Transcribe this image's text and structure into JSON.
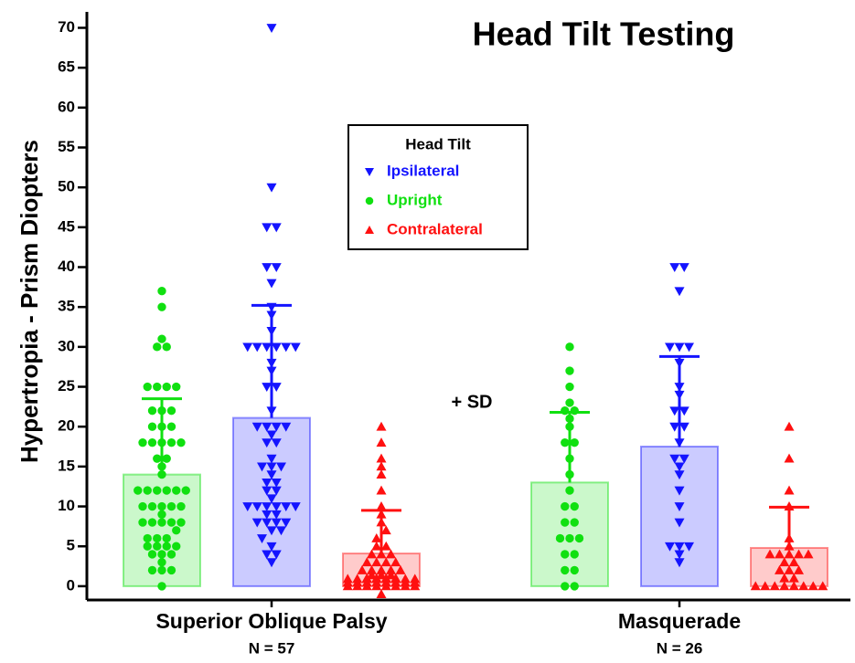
{
  "chart_data": {
    "type": "bar",
    "title": "Head Tilt Testing",
    "ylabel": "Hypertropia - Prism Diopters",
    "annotation": "+ SD",
    "categories": [
      "Superior Oblique Palsy",
      "Masquerade"
    ],
    "category_notes": [
      "N = 57",
      "N = 26"
    ],
    "legend_title": "Head Tilt",
    "legend_position": "top-center",
    "ylim": [
      -1.5,
      72
    ],
    "yticks": [
      0,
      5,
      10,
      15,
      20,
      25,
      30,
      35,
      40,
      45,
      50,
      55,
      60,
      65,
      70
    ],
    "series": [
      {
        "name": "Ipsilateral",
        "color": "#1414ff",
        "marker": "triangle-down",
        "values": [
          21.1,
          17.5
        ],
        "errors": [
          14.1,
          11.3
        ],
        "points": [
          [
            3,
            4,
            4,
            5,
            6,
            7,
            7,
            8,
            8,
            8,
            8,
            9,
            9,
            10,
            10,
            10,
            10,
            10,
            10,
            11,
            12,
            12,
            13,
            13,
            14,
            15,
            15,
            15,
            16,
            18,
            18,
            19,
            20,
            20,
            20,
            20,
            22,
            25,
            25,
            27,
            28,
            30,
            30,
            30,
            30,
            30,
            30,
            32,
            34,
            35,
            38,
            40,
            40,
            45,
            45,
            50,
            70
          ],
          [
            3,
            4,
            5,
            5,
            5,
            8,
            10,
            12,
            14,
            15,
            16,
            16,
            18,
            20,
            20,
            22,
            22,
            24,
            25,
            28,
            30,
            30,
            30,
            37,
            40,
            40
          ]
        ]
      },
      {
        "name": "Upright",
        "color": "#10e010",
        "marker": "circle",
        "values": [
          14,
          13
        ],
        "errors": [
          9.5,
          8.8
        ],
        "points": [
          [
            0,
            2,
            2,
            2,
            3,
            4,
            4,
            4,
            5,
            5,
            5,
            5,
            6,
            6,
            6,
            7,
            8,
            8,
            8,
            8,
            8,
            9,
            10,
            10,
            10,
            10,
            10,
            12,
            12,
            12,
            12,
            12,
            12,
            14,
            15,
            16,
            16,
            18,
            18,
            18,
            18,
            18,
            20,
            20,
            20,
            22,
            22,
            22,
            25,
            25,
            25,
            25,
            30,
            30,
            31,
            35,
            37
          ],
          [
            0,
            0,
            2,
            2,
            4,
            4,
            6,
            6,
            6,
            8,
            8,
            10,
            10,
            12,
            14,
            16,
            18,
            18,
            20,
            21,
            22,
            22,
            23,
            25,
            27,
            30
          ]
        ]
      },
      {
        "name": "Contralateral",
        "color": "#ff1010",
        "marker": "triangle-up",
        "values": [
          4.1,
          4.8
        ],
        "errors": [
          5.4,
          5.1
        ],
        "points": [
          [
            -1,
            0,
            0,
            0,
            0,
            0,
            0,
            0,
            0,
            0,
            0,
            0,
            0,
            0,
            0,
            0,
            0,
            0,
            0,
            0,
            0,
            0,
            0,
            0,
            0,
            0,
            0,
            0,
            1,
            1,
            1,
            1,
            2,
            2,
            2,
            2,
            2,
            3,
            3,
            3,
            3,
            4,
            4,
            4,
            5,
            5,
            6,
            7,
            8,
            9,
            10,
            12,
            14,
            15,
            16,
            18,
            20
          ],
          [
            0,
            0,
            0,
            0,
            0,
            0,
            0,
            0,
            1,
            1,
            2,
            2,
            2,
            3,
            3,
            4,
            4,
            4,
            4,
            4,
            5,
            6,
            10,
            12,
            16,
            20
          ]
        ]
      }
    ]
  }
}
